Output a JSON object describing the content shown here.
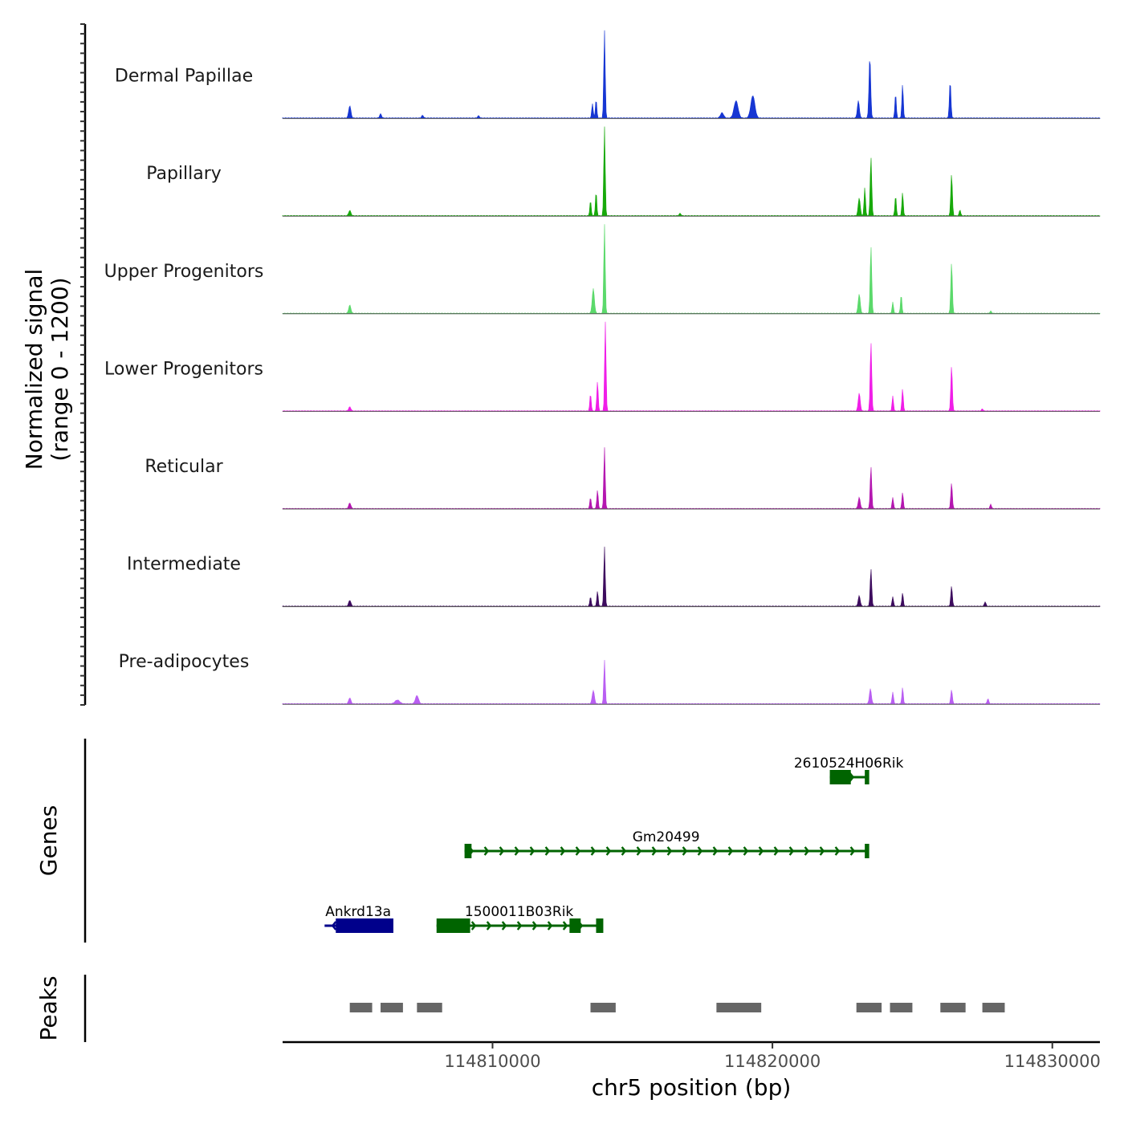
{
  "chart_data": {
    "type": "area",
    "title": "",
    "xlabel": "chr5 position (bp)",
    "ylabel": "Normalized signal (range 0 - 1200)",
    "ylabel_lines": [
      "Normalized signal",
      "(range 0 - 1200)"
    ],
    "ylim": [
      0,
      1200
    ],
    "xlim": [
      114802500,
      114831700
    ],
    "x_ticks": [
      114810000,
      114820000,
      114830000
    ],
    "x_tick_labels": [
      "114810000",
      "114820000",
      "114830000"
    ],
    "series": [
      {
        "name": "Dermal Papillae",
        "color": "#1636d3",
        "baseline": 5,
        "peaks": [
          {
            "center": 114804900,
            "width": 140,
            "value": 165
          },
          {
            "center": 114806000,
            "width": 120,
            "value": 55
          },
          {
            "center": 114813570,
            "width": 90,
            "value": 195
          },
          {
            "center": 114813700,
            "width": 90,
            "value": 250
          },
          {
            "center": 114814000,
            "width": 90,
            "value": 1180
          },
          {
            "center": 114818200,
            "width": 200,
            "value": 70
          },
          {
            "center": 114818700,
            "width": 260,
            "value": 230
          },
          {
            "center": 114819300,
            "width": 260,
            "value": 300
          },
          {
            "center": 114823070,
            "width": 130,
            "value": 230
          },
          {
            "center": 114823480,
            "width": 110,
            "value": 820
          },
          {
            "center": 114824400,
            "width": 90,
            "value": 330
          },
          {
            "center": 114824650,
            "width": 90,
            "value": 450
          },
          {
            "center": 114826350,
            "width": 100,
            "value": 490
          },
          {
            "center": 114807500,
            "width": 120,
            "value": 35
          },
          {
            "center": 114809500,
            "width": 120,
            "value": 30
          }
        ]
      },
      {
        "name": "Papillary",
        "color": "#17a90a",
        "baseline": 4,
        "peaks": [
          {
            "center": 114804900,
            "width": 140,
            "value": 70
          },
          {
            "center": 114813500,
            "width": 90,
            "value": 200
          },
          {
            "center": 114813700,
            "width": 90,
            "value": 320
          },
          {
            "center": 114814000,
            "width": 90,
            "value": 1200
          },
          {
            "center": 114823100,
            "width": 130,
            "value": 240
          },
          {
            "center": 114823300,
            "width": 90,
            "value": 380
          },
          {
            "center": 114823520,
            "width": 100,
            "value": 790
          },
          {
            "center": 114824400,
            "width": 90,
            "value": 270
          },
          {
            "center": 114824650,
            "width": 90,
            "value": 310
          },
          {
            "center": 114826400,
            "width": 100,
            "value": 560
          },
          {
            "center": 114826700,
            "width": 90,
            "value": 80
          },
          {
            "center": 114816700,
            "width": 120,
            "value": 30
          }
        ]
      },
      {
        "name": "Upper Progenitors",
        "color": "#5bd96b",
        "baseline": 4,
        "peaks": [
          {
            "center": 114804900,
            "width": 140,
            "value": 110
          },
          {
            "center": 114813600,
            "width": 140,
            "value": 330
          },
          {
            "center": 114814000,
            "width": 90,
            "value": 1200
          },
          {
            "center": 114823100,
            "width": 130,
            "value": 260
          },
          {
            "center": 114823520,
            "width": 100,
            "value": 900
          },
          {
            "center": 114824300,
            "width": 90,
            "value": 150
          },
          {
            "center": 114824600,
            "width": 90,
            "value": 250
          },
          {
            "center": 114826400,
            "width": 100,
            "value": 680
          },
          {
            "center": 114827800,
            "width": 100,
            "value": 30
          }
        ]
      },
      {
        "name": "Lower Progenitors",
        "color": "#f01ee8",
        "baseline": 4,
        "peaks": [
          {
            "center": 114804900,
            "width": 140,
            "value": 55
          },
          {
            "center": 114813500,
            "width": 90,
            "value": 230
          },
          {
            "center": 114813750,
            "width": 90,
            "value": 400
          },
          {
            "center": 114814030,
            "width": 90,
            "value": 1200
          },
          {
            "center": 114823100,
            "width": 130,
            "value": 240
          },
          {
            "center": 114823520,
            "width": 100,
            "value": 920
          },
          {
            "center": 114824300,
            "width": 90,
            "value": 200
          },
          {
            "center": 114824650,
            "width": 90,
            "value": 300
          },
          {
            "center": 114826400,
            "width": 100,
            "value": 600
          },
          {
            "center": 114827500,
            "width": 90,
            "value": 30
          }
        ]
      },
      {
        "name": "Reticular",
        "color": "#b417b0",
        "baseline": 4,
        "peaks": [
          {
            "center": 114804900,
            "width": 140,
            "value": 75
          },
          {
            "center": 114813500,
            "width": 90,
            "value": 150
          },
          {
            "center": 114813750,
            "width": 90,
            "value": 250
          },
          {
            "center": 114814000,
            "width": 90,
            "value": 820
          },
          {
            "center": 114823100,
            "width": 130,
            "value": 150
          },
          {
            "center": 114823520,
            "width": 100,
            "value": 560
          },
          {
            "center": 114824300,
            "width": 90,
            "value": 150
          },
          {
            "center": 114824650,
            "width": 90,
            "value": 220
          },
          {
            "center": 114826400,
            "width": 100,
            "value": 340
          },
          {
            "center": 114827800,
            "width": 90,
            "value": 60
          }
        ]
      },
      {
        "name": "Intermediate",
        "color": "#3d0c5e",
        "baseline": 4,
        "peaks": [
          {
            "center": 114804900,
            "width": 140,
            "value": 80
          },
          {
            "center": 114813500,
            "width": 90,
            "value": 130
          },
          {
            "center": 114813750,
            "width": 90,
            "value": 200
          },
          {
            "center": 114814000,
            "width": 90,
            "value": 800
          },
          {
            "center": 114823100,
            "width": 130,
            "value": 140
          },
          {
            "center": 114823520,
            "width": 100,
            "value": 500
          },
          {
            "center": 114824300,
            "width": 90,
            "value": 130
          },
          {
            "center": 114824650,
            "width": 90,
            "value": 180
          },
          {
            "center": 114826400,
            "width": 100,
            "value": 270
          },
          {
            "center": 114827600,
            "width": 100,
            "value": 60
          }
        ]
      },
      {
        "name": "Pre-adipocytes",
        "color": "#b95ef2",
        "baseline": 5,
        "peaks": [
          {
            "center": 114804900,
            "width": 140,
            "value": 80
          },
          {
            "center": 114806600,
            "width": 300,
            "value": 50
          },
          {
            "center": 114807300,
            "width": 200,
            "value": 110
          },
          {
            "center": 114813600,
            "width": 140,
            "value": 180
          },
          {
            "center": 114814000,
            "width": 90,
            "value": 590
          },
          {
            "center": 114823500,
            "width": 130,
            "value": 200
          },
          {
            "center": 114824300,
            "width": 90,
            "value": 160
          },
          {
            "center": 114824650,
            "width": 90,
            "value": 220
          },
          {
            "center": 114826400,
            "width": 100,
            "value": 190
          },
          {
            "center": 114827700,
            "width": 100,
            "value": 70
          }
        ]
      }
    ],
    "genes_label": "Genes",
    "genes": [
      {
        "name": "2610524H06Rik",
        "start": 114822050,
        "end": 114823400,
        "strand": "-",
        "color": "#006400",
        "row": 0,
        "exons": [
          [
            114822050,
            114822800
          ],
          [
            114823300,
            114823400
          ]
        ]
      },
      {
        "name": "Gm20499",
        "start": 114809000,
        "end": 114823400,
        "strand": "-",
        "color": "#006400",
        "row": 1,
        "exons": [
          [
            114809000,
            114809250
          ],
          [
            114823300,
            114823400
          ]
        ]
      },
      {
        "name": "Ankrd13a",
        "start": 114804000,
        "end": 114806400,
        "strand": "+",
        "color": "#00008b",
        "row": 2,
        "exons": [
          [
            114804400,
            114806400
          ]
        ]
      },
      {
        "name": "1500011B03Rik",
        "start": 114808000,
        "end": 114813900,
        "strand": "-",
        "color": "#006400",
        "row": 2,
        "exons": [
          [
            114808000,
            114809200
          ],
          [
            114812750,
            114813150
          ],
          [
            114813700,
            114813900
          ]
        ]
      }
    ],
    "peaks_label": "Peaks",
    "peaks_color": "#666666",
    "peaks": [
      [
        114804900,
        114805700
      ],
      [
        114806000,
        114806800
      ],
      [
        114807300,
        114808200
      ],
      [
        114813500,
        114814400
      ],
      [
        114818000,
        114819600
      ],
      [
        114823000,
        114823900
      ],
      [
        114824200,
        114825000
      ],
      [
        114826000,
        114826900
      ],
      [
        114827500,
        114828300
      ]
    ]
  }
}
